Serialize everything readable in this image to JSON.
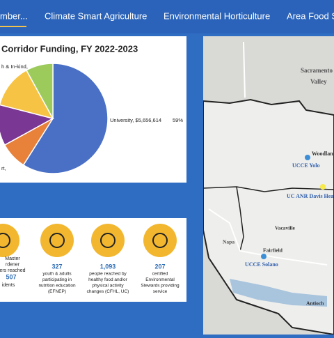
{
  "nav": {
    "tabs": [
      "mber...",
      "Climate Smart Agriculture",
      "Environmental Horticulture",
      "Area Food S"
    ]
  },
  "pie_chart": {
    "type": "pie",
    "title": "Corridor Funding, FY 2022-2023",
    "categories": [
      "University, $5,656,614",
      "rt,",
      null,
      null,
      "h & In-kind,"
    ],
    "values": [
      59,
      8,
      12,
      13,
      8
    ],
    "value_labels": [
      "59%",
      null,
      null,
      null,
      null
    ],
    "colors": [
      "#4a70c6",
      "#e8813a",
      "#7a3794",
      "#f6c344",
      "#9ccb5c"
    ]
  },
  "stats": [
    {
      "number": "507",
      "lines": [
        "Master",
        "rdener",
        "ers reached"
      ],
      "after": "idents"
    },
    {
      "number": "327",
      "lines": [
        "youth & adults",
        "participating in",
        "nutrition education",
        "(EFNEP)"
      ]
    },
    {
      "number": "1,093",
      "lines": [
        "people reached by",
        "healthy food and/or",
        "physical activity",
        "changes (CFHL, UC)"
      ]
    },
    {
      "number": "207",
      "lines": [
        "certified",
        "Environmental",
        "Stewards providing",
        "service"
      ]
    }
  ],
  "map": {
    "labels": [
      "Sacramento",
      "Valley",
      "Woodlan",
      "UCCE Yolo",
      "UC ANR Davis Headq",
      "Vacaville",
      "Napa",
      "Fairfield",
      "UCCE Solano",
      "Antioch"
    ]
  }
}
